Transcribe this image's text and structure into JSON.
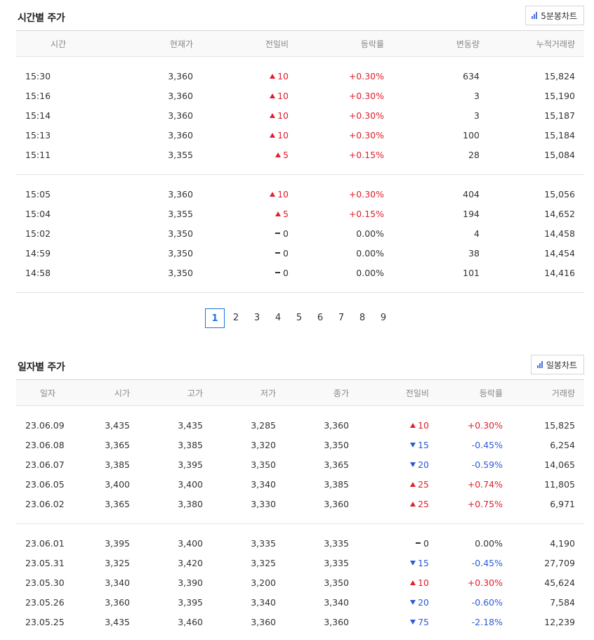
{
  "time_section": {
    "title": "시간별 주가",
    "chart_button": "5분봉차트",
    "headers": [
      "시간",
      "현재가",
      "전일비",
      "등락률",
      "변동량",
      "누적거래량"
    ],
    "groups": [
      [
        {
          "time": "15:30",
          "price": "3,360",
          "dir": "up",
          "change": "10",
          "rate": "+0.30%",
          "vol": "634",
          "acc": "15,824"
        },
        {
          "time": "15:16",
          "price": "3,360",
          "dir": "up",
          "change": "10",
          "rate": "+0.30%",
          "vol": "3",
          "acc": "15,190"
        },
        {
          "time": "15:14",
          "price": "3,360",
          "dir": "up",
          "change": "10",
          "rate": "+0.30%",
          "vol": "3",
          "acc": "15,187"
        },
        {
          "time": "15:13",
          "price": "3,360",
          "dir": "up",
          "change": "10",
          "rate": "+0.30%",
          "vol": "100",
          "acc": "15,184"
        },
        {
          "time": "15:11",
          "price": "3,355",
          "dir": "up",
          "change": "5",
          "rate": "+0.15%",
          "vol": "28",
          "acc": "15,084"
        }
      ],
      [
        {
          "time": "15:05",
          "price": "3,360",
          "dir": "up",
          "change": "10",
          "rate": "+0.30%",
          "vol": "404",
          "acc": "15,056"
        },
        {
          "time": "15:04",
          "price": "3,355",
          "dir": "up",
          "change": "5",
          "rate": "+0.15%",
          "vol": "194",
          "acc": "14,652"
        },
        {
          "time": "15:02",
          "price": "3,350",
          "dir": "flat",
          "change": "0",
          "rate": "0.00%",
          "vol": "4",
          "acc": "14,458"
        },
        {
          "time": "14:59",
          "price": "3,350",
          "dir": "flat",
          "change": "0",
          "rate": "0.00%",
          "vol": "38",
          "acc": "14,454"
        },
        {
          "time": "14:58",
          "price": "3,350",
          "dir": "flat",
          "change": "0",
          "rate": "0.00%",
          "vol": "101",
          "acc": "14,416"
        }
      ]
    ]
  },
  "pagination": {
    "pages": [
      "1",
      "2",
      "3",
      "4",
      "5",
      "6",
      "7",
      "8",
      "9"
    ],
    "current": "1"
  },
  "daily_section": {
    "title": "일자별 주가",
    "chart_button": "일봉차트",
    "headers": [
      "일자",
      "시가",
      "고가",
      "저가",
      "종가",
      "전일비",
      "등락률",
      "거래량"
    ],
    "groups": [
      [
        {
          "date": "23.06.09",
          "open": "3,435",
          "high": "3,435",
          "low": "3,285",
          "close": "3,360",
          "dir": "up",
          "change": "10",
          "rate": "+0.30%",
          "vol": "15,825"
        },
        {
          "date": "23.06.08",
          "open": "3,365",
          "high": "3,385",
          "low": "3,320",
          "close": "3,350",
          "dir": "down",
          "change": "15",
          "rate": "-0.45%",
          "vol": "6,254"
        },
        {
          "date": "23.06.07",
          "open": "3,385",
          "high": "3,395",
          "low": "3,350",
          "close": "3,365",
          "dir": "down",
          "change": "20",
          "rate": "-0.59%",
          "vol": "14,065"
        },
        {
          "date": "23.06.05",
          "open": "3,400",
          "high": "3,400",
          "low": "3,340",
          "close": "3,385",
          "dir": "up",
          "change": "25",
          "rate": "+0.74%",
          "vol": "11,805"
        },
        {
          "date": "23.06.02",
          "open": "3,365",
          "high": "3,380",
          "low": "3,330",
          "close": "3,360",
          "dir": "up",
          "change": "25",
          "rate": "+0.75%",
          "vol": "6,971"
        }
      ],
      [
        {
          "date": "23.06.01",
          "open": "3,395",
          "high": "3,400",
          "low": "3,335",
          "close": "3,335",
          "dir": "flat",
          "change": "0",
          "rate": "0.00%",
          "vol": "4,190"
        },
        {
          "date": "23.05.31",
          "open": "3,325",
          "high": "3,420",
          "low": "3,325",
          "close": "3,335",
          "dir": "down",
          "change": "15",
          "rate": "-0.45%",
          "vol": "27,709"
        },
        {
          "date": "23.05.30",
          "open": "3,340",
          "high": "3,390",
          "low": "3,200",
          "close": "3,350",
          "dir": "up",
          "change": "10",
          "rate": "+0.30%",
          "vol": "45,624"
        },
        {
          "date": "23.05.26",
          "open": "3,360",
          "high": "3,395",
          "low": "3,340",
          "close": "3,340",
          "dir": "down",
          "change": "20",
          "rate": "-0.60%",
          "vol": "7,584"
        },
        {
          "date": "23.05.25",
          "open": "3,435",
          "high": "3,460",
          "low": "3,360",
          "close": "3,360",
          "dir": "down",
          "change": "75",
          "rate": "-2.18%",
          "vol": "12,239"
        }
      ]
    ]
  },
  "colors": {
    "up": "#e0202c",
    "down": "#2b5bd6",
    "accent": "#1a73e8"
  }
}
